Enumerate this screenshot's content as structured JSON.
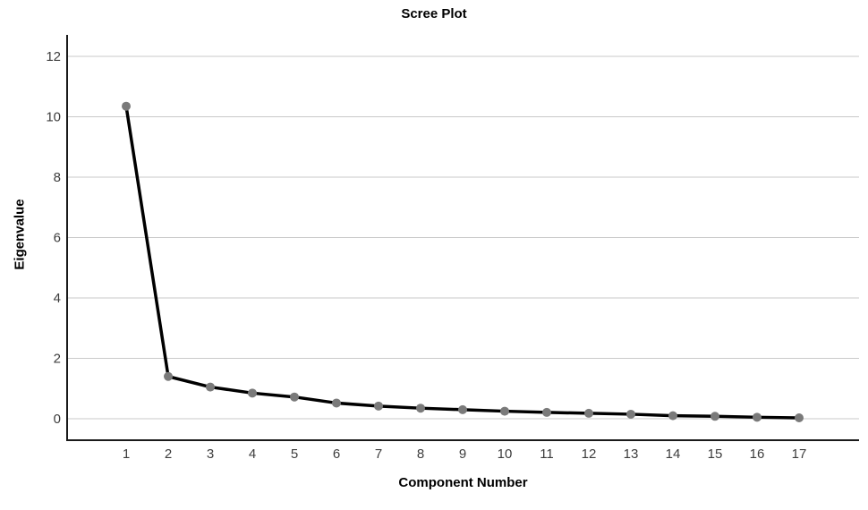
{
  "chart_data": {
    "type": "line",
    "title": "Scree Plot",
    "xlabel": "Component Number",
    "ylabel": "Eigenvalue",
    "x": [
      1,
      2,
      3,
      4,
      5,
      6,
      7,
      8,
      9,
      10,
      11,
      12,
      13,
      14,
      15,
      16,
      17
    ],
    "values": [
      10.35,
      1.4,
      1.05,
      0.85,
      0.72,
      0.52,
      0.42,
      0.35,
      0.3,
      0.25,
      0.21,
      0.18,
      0.15,
      0.1,
      0.08,
      0.05,
      0.03
    ],
    "y_ticks": [
      0,
      2,
      4,
      6,
      8,
      10,
      12
    ],
    "ylim": [
      -0.7,
      12.75
    ],
    "grid": "horizontal-only",
    "legend": "none",
    "marker": "filled-circle",
    "colors": {
      "line": "#000000",
      "marker": "#7a7a7a",
      "gridline": "#c9c9c9",
      "axis": "#1a1a1a",
      "tick_text": "#3d3d3d",
      "title_text": "#000000",
      "background": "#ffffff"
    }
  }
}
